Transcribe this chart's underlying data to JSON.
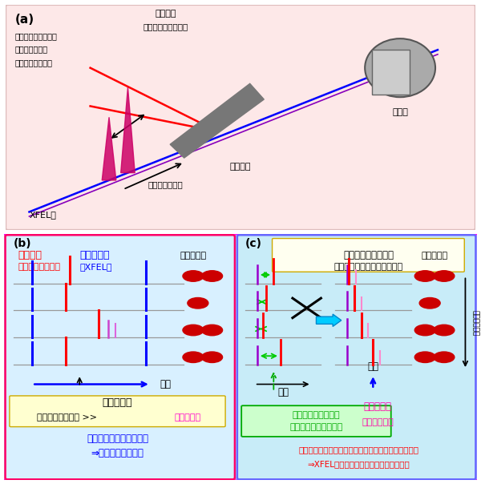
{
  "panel_a_bg": "#fde8e8",
  "panel_bc_bg": "#c0eef8",
  "outer_border_color": "#ff00ff",
  "inner_border_b_color": "#ff0066",
  "inner_border_c_color": "#6666ff",
  "panel_b_bg": "#d8f0ff",
  "panel_c_bg": "#c8ecf8",
  "title_a": "(a)",
  "title_b": "(b)",
  "title_c": "(c)",
  "label_pump_red": "ポンプ光",
  "label_probe_blue": "プローブ光",
  "label_pump_sub": "（光学レーザー）",
  "label_probe_sub": "（XFEL）",
  "label_measured_data": "測定データ",
  "label_time": "時間",
  "label_time_resolution_title": "時間分解能",
  "label_time_resolution_sub_black": "（時間揺らぎの幅 >> ",
  "label_time_resolution_sub_pink": "パルス幅）",
  "label_jitter_effect1": "照射タイミングの揺らぎ",
  "label_jitter_effect2": "⇒時間分解能が悪化",
  "label_postprocess1": "ポストプロセス解析",
  "label_postprocess2": "（タイミング順に並び替え）",
  "label_timing_device1": "タイミング計測装置",
  "label_timing_device2": "照射タイミングを計測",
  "label_time_res_c_title": "時間分解能",
  "label_time_res_c_sub": "（パルス幅）",
  "label_result1": "計測した照射タイミングによる実験データの並べ替え",
  "label_result2": "⇒XFEL光・レーザー光の幅が時間分解能",
  "label_detector": "検出器",
  "label_sample": "実験試料",
  "label_pump_light1": "ポンプ光",
  "label_pump_light2": "（光学レーザー光）",
  "label_timing_control1": "入射タイミング制御",
  "label_timing_control2": "（光路の長さで",
  "label_timing_control3": "時間間隔を制御）",
  "label_irradiation": "照射タイミング",
  "label_xfel": "XFEL光",
  "label_time_res_order": "時間分解能順"
}
